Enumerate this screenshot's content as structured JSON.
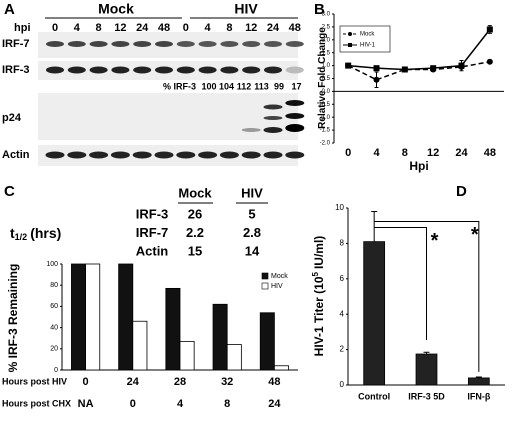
{
  "panel_labels": [
    "A",
    "B",
    "C",
    "D"
  ],
  "blot": {
    "hpi_label": "hpi",
    "groups": [
      "Mock",
      "HIV"
    ],
    "lanes": [
      "0",
      "4",
      "8",
      "12",
      "24",
      "48",
      "0",
      "4",
      "8",
      "12",
      "24",
      "48"
    ],
    "rows": [
      "IRF-7",
      "IRF-3",
      "p24",
      "Actin"
    ],
    "irf3_label": "% IRF-3",
    "irf3_percent": [
      100,
      104,
      112,
      113,
      99,
      17
    ]
  },
  "table": {
    "symbol": "t",
    "subscript": "1/2",
    "unit": "(hrs)",
    "columns": [
      "Mock",
      "HIV"
    ],
    "rows": [
      {
        "label": "IRF-3",
        "values": [
          26,
          5
        ]
      },
      {
        "label": "IRF-7",
        "values": [
          2.2,
          2.8
        ]
      },
      {
        "label": "Actin",
        "values": [
          15,
          14
        ]
      }
    ]
  },
  "chart_data": [
    {
      "type": "line",
      "ylabel": "Relative Fold Change",
      "xlabel": "Hpi",
      "categories": [
        "0",
        "4",
        "8",
        "12",
        "24",
        "48"
      ],
      "series": [
        {
          "name": "Mock",
          "color": "#000000",
          "line_style": "dashed",
          "marker": "circle",
          "values": [
            1.0,
            0.45,
            0.85,
            0.85,
            0.95,
            1.15
          ],
          "errors": [
            0.05,
            0.3,
            0.05,
            0.05,
            0.05,
            0.05
          ]
        },
        {
          "name": "HIV-1",
          "color": "#000000",
          "line_style": "solid",
          "marker": "square",
          "values": [
            1.0,
            0.9,
            0.85,
            0.9,
            1.0,
            2.4
          ],
          "errors": [
            0.05,
            0.05,
            0.05,
            0.05,
            0.2,
            0.15
          ]
        }
      ],
      "ylim": [
        -2,
        3
      ],
      "yticks": [
        {
          "value": -2,
          "label": "-2.0"
        },
        {
          "value": -1.5,
          "label": "-1.5"
        },
        {
          "value": -1,
          "label": "-1.0"
        },
        {
          "value": -0.5,
          "label": "-0.5"
        },
        {
          "value": 0,
          "label": "0.0"
        },
        {
          "value": 0.5,
          "label": "0.5"
        },
        {
          "value": 1,
          "label": "1.0"
        },
        {
          "value": 1.5,
          "label": "1.5"
        },
        {
          "value": 2,
          "label": "2.0"
        },
        {
          "value": 2.5,
          "label": "2.5"
        },
        {
          "value": 3,
          "label": "3.0"
        }
      ],
      "legend": "upper left"
    },
    {
      "type": "bar",
      "ylabel": "% IRF-3 Remaining",
      "xlabel": "Hours post HIV",
      "categories": [
        "0",
        "24",
        "28",
        "32",
        "48"
      ],
      "xlabel2": "Hours post CHX",
      "categories2": [
        "NA",
        "0",
        "4",
        "8",
        "24"
      ],
      "series": [
        {
          "name": "Mock",
          "color": "#111111",
          "values": [
            100,
            100,
            77,
            62,
            54
          ]
        },
        {
          "name": "HIV",
          "color": "#ffffff",
          "values": [
            100,
            46,
            27,
            24,
            4
          ]
        }
      ],
      "ylim": [
        0,
        100
      ],
      "yticks": [
        0,
        20,
        40,
        60,
        80,
        100
      ],
      "legend": "upper right"
    },
    {
      "type": "bar",
      "ylabel": "HIV-1 Titer (10",
      "ylabel_sup": "5",
      "ylabel_end": "IU/ml)",
      "categories": [
        "Control",
        "IRF-3 5D",
        "IFN-β"
      ],
      "values": [
        8.1,
        1.75,
        0.4
      ],
      "errors": [
        1.7,
        0.1,
        0.05
      ],
      "color": "#222222",
      "ylim": [
        0,
        10
      ],
      "yticks": [
        0,
        2,
        4,
        6,
        8,
        10
      ],
      "annotations": [
        "*",
        "*"
      ]
    }
  ]
}
